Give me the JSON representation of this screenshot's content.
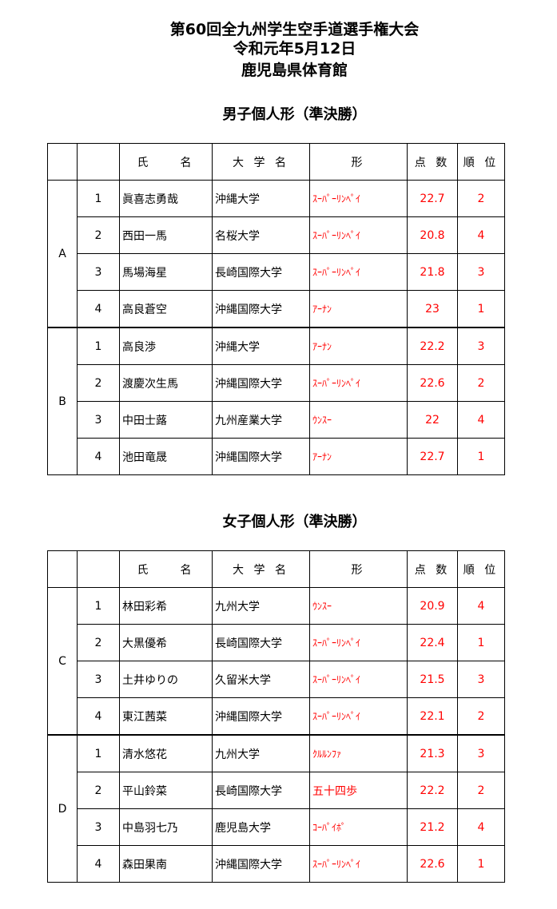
{
  "header": {
    "line1": "第60回全九州学生空手道選手権大会",
    "line2": "令和元年5月12日",
    "line3": "鹿児島県体育館"
  },
  "columns": [
    "",
    "",
    "氏　　名",
    "大 学 名",
    "形",
    "点 数",
    "順 位"
  ],
  "sections": [
    {
      "title": "男子個人形（準決勝）",
      "groups": [
        {
          "label": "A",
          "rows": [
            {
              "no": "1",
              "name": "眞喜志勇哉",
              "univ": "沖縄大学",
              "kata": "ｽｰﾊﾟｰﾘﾝﾍﾟｲ",
              "score": "22.7",
              "rank": "2"
            },
            {
              "no": "2",
              "name": "西田一馬",
              "univ": "名桜大学",
              "kata": "ｽｰﾊﾟｰﾘﾝﾍﾟｲ",
              "score": "20.8",
              "rank": "4"
            },
            {
              "no": "3",
              "name": "馬場海星",
              "univ": "長崎国際大学",
              "kata": "ｽｰﾊﾟｰﾘﾝﾍﾟｲ",
              "score": "21.8",
              "rank": "3"
            },
            {
              "no": "4",
              "name": "高良蒼空",
              "univ": "沖縄国際大学",
              "kata": "ｱｰﾅﾝ",
              "score": "23",
              "rank": "1"
            }
          ]
        },
        {
          "label": "B",
          "rows": [
            {
              "no": "1",
              "name": "高良渉",
              "univ": "沖縄大学",
              "kata": "ｱｰﾅﾝ",
              "score": "22.2",
              "rank": "3"
            },
            {
              "no": "2",
              "name": "渡慶次生馬",
              "univ": "沖縄国際大学",
              "kata": "ｽｰﾊﾟｰﾘﾝﾍﾟｲ",
              "score": "22.6",
              "rank": "2"
            },
            {
              "no": "3",
              "name": "中田士蕗",
              "univ": "九州産業大学",
              "kata": "ｳﾝｽｰ",
              "score": "22",
              "rank": "4"
            },
            {
              "no": "4",
              "name": "池田竜晟",
              "univ": "沖縄国際大学",
              "kata": "ｱｰﾅﾝ",
              "score": "22.7",
              "rank": "1"
            }
          ]
        }
      ]
    },
    {
      "title": "女子個人形（準決勝）",
      "groups": [
        {
          "label": "C",
          "rows": [
            {
              "no": "1",
              "name": "林田彩希",
              "univ": "九州大学",
              "kata": "ｳﾝｽｰ",
              "score": "20.9",
              "rank": "4"
            },
            {
              "no": "2",
              "name": "大黒優希",
              "univ": "長崎国際大学",
              "kata": "ｽｰﾊﾟｰﾘﾝﾍﾟｲ",
              "score": "22.4",
              "rank": "1"
            },
            {
              "no": "3",
              "name": "土井ゆりの",
              "univ": "久留米大学",
              "kata": "ｽｰﾊﾟｰﾘﾝﾍﾟｲ",
              "score": "21.5",
              "rank": "3"
            },
            {
              "no": "4",
              "name": "東江茜菜",
              "univ": "沖縄国際大学",
              "kata": "ｽｰﾊﾟｰﾘﾝﾍﾟｲ",
              "score": "22.1",
              "rank": "2"
            }
          ]
        },
        {
          "label": "D",
          "rows": [
            {
              "no": "1",
              "name": "清水悠花",
              "univ": "九州大学",
              "kata": "ｸﾙﾙﾝﾌｧ",
              "score": "21.3",
              "rank": "3"
            },
            {
              "no": "2",
              "name": "平山鈴菜",
              "univ": "長崎国際大学",
              "kata": "五十四歩",
              "score": "22.2",
              "rank": "2"
            },
            {
              "no": "3",
              "name": "中島羽七乃",
              "univ": "鹿児島大学",
              "kata": "ｺｰﾊﾟｲﾎﾟ",
              "score": "21.2",
              "rank": "4"
            },
            {
              "no": "4",
              "name": "森田果南",
              "univ": "沖縄国際大学",
              "kata": "ｽｰﾊﾟｰﾘﾝﾍﾟｲ",
              "score": "22.6",
              "rank": "1"
            }
          ]
        }
      ]
    }
  ],
  "colors": {
    "result": "#ff0000"
  }
}
